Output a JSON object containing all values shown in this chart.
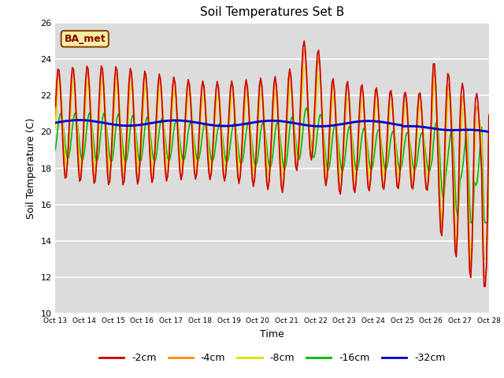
{
  "title": "Soil Temperatures Set B",
  "xlabel": "Time",
  "ylabel": "Soil Temperature (C)",
  "ylim": [
    10,
    26
  ],
  "background_color": "#dcdcdc",
  "annotation_text": "BA_met",
  "annotation_bg": "#f5f0a0",
  "annotation_border": "#8b4513",
  "x_tick_labels": [
    "Oct 13",
    "Oct 14",
    "Oct 15",
    "Oct 16",
    "Oct 17",
    "Oct 18",
    "Oct 19",
    "Oct 20",
    "Oct 21",
    "Oct 22",
    "Oct 23",
    "Oct 24",
    "Oct 25",
    "Oct 26",
    "Oct 27",
    "Oct 28"
  ],
  "series": {
    "-2cm": {
      "color": "#cc0000",
      "lw": 1.2
    },
    "-4cm": {
      "color": "#ff8800",
      "lw": 1.2
    },
    "-8cm": {
      "color": "#e0e000",
      "lw": 1.2
    },
    "-16cm": {
      "color": "#00bb00",
      "lw": 1.2
    },
    "-32cm": {
      "color": "#0000cc",
      "lw": 2.0
    }
  }
}
